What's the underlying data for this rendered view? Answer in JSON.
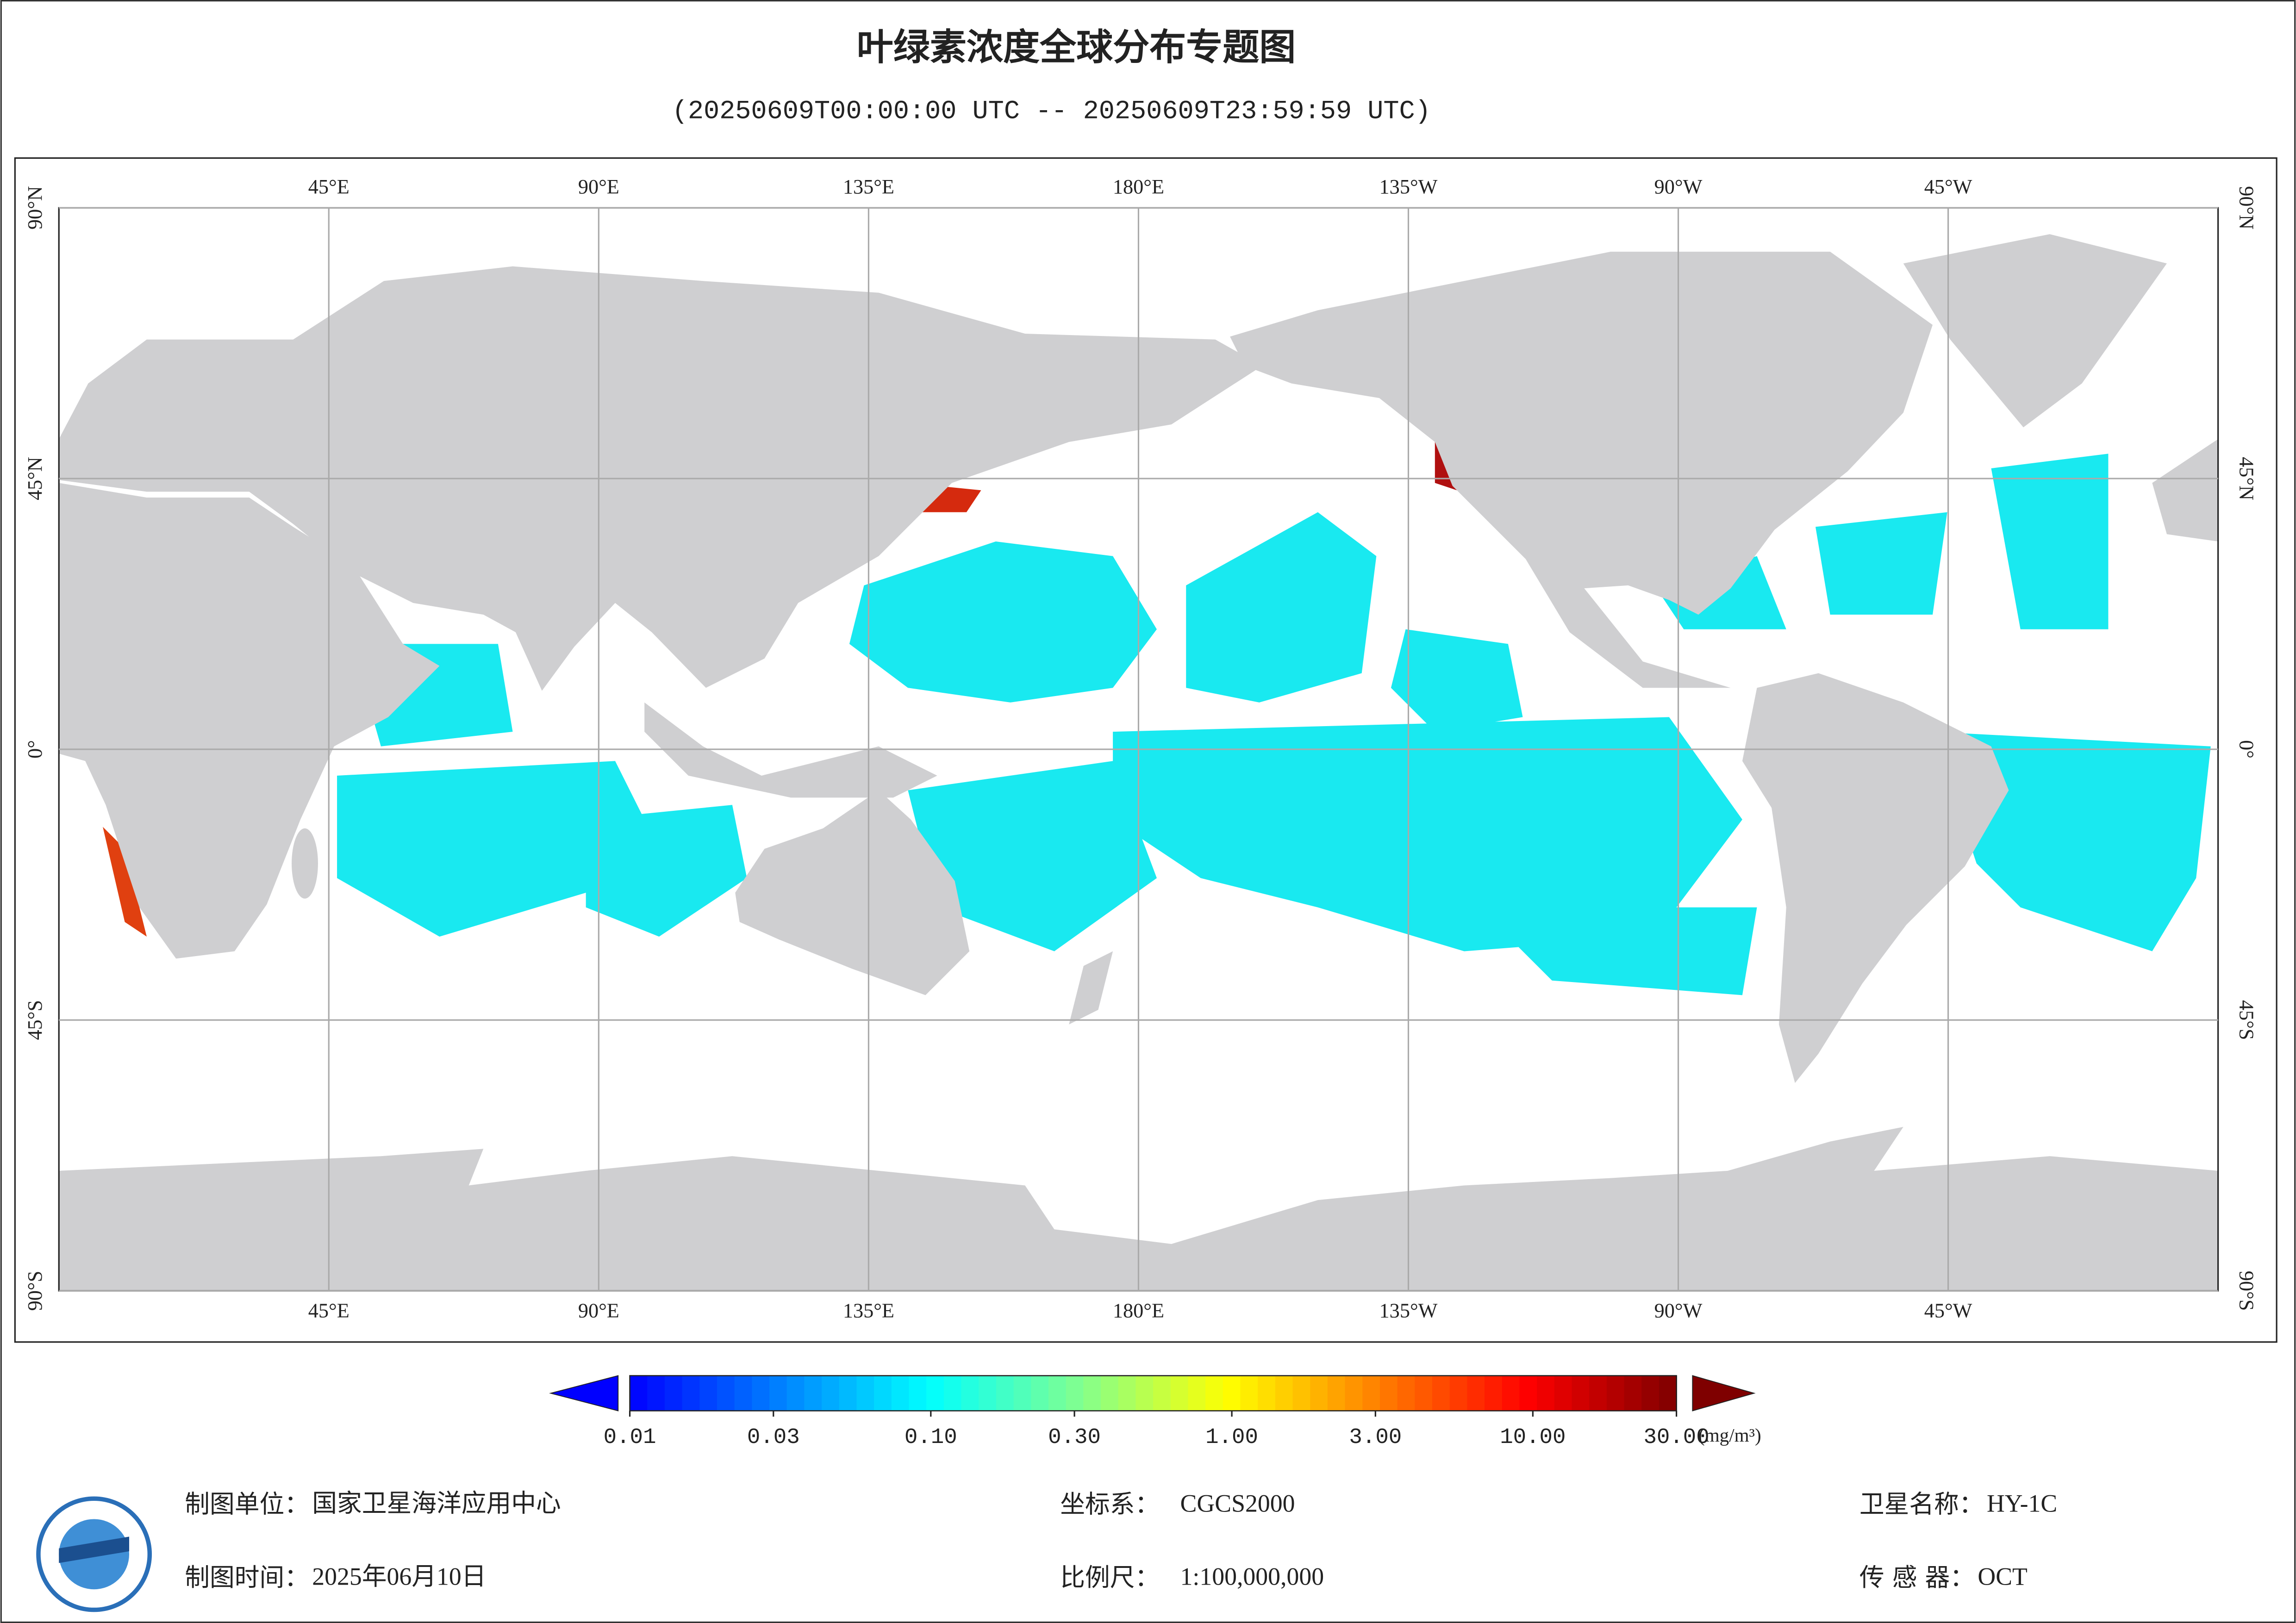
{
  "header": {
    "title": "叶绿素浓度全球分布专题图",
    "subtitle": "(20250609T00:00:00 UTC -- 20250609T23:59:59 UTC)"
  },
  "map": {
    "xlim": [
      0,
      360
    ],
    "ylim": [
      -90,
      90
    ],
    "lon_ticks": [
      {
        "value": 45,
        "label": "45°E"
      },
      {
        "value": 90,
        "label": "90°E"
      },
      {
        "value": 135,
        "label": "135°E"
      },
      {
        "value": 180,
        "label": "180°E"
      },
      {
        "value": 225,
        "label": "135°W"
      },
      {
        "value": 270,
        "label": "90°W"
      },
      {
        "value": 315,
        "label": "45°W"
      }
    ],
    "lat_ticks": [
      {
        "value": 90,
        "label": "90°N"
      },
      {
        "value": 45,
        "label": "45°N"
      },
      {
        "value": 0,
        "label": "0°"
      },
      {
        "value": -45,
        "label": "45°S"
      },
      {
        "value": -90,
        "label": "90°S"
      }
    ],
    "grid": true
  },
  "colorbar": {
    "log": true,
    "lim": [
      0.01,
      30
    ],
    "colors": [
      "#0000ff",
      "#0080ff",
      "#00ffff",
      "#80ff90",
      "#ffff00",
      "#ff8000",
      "#ff0000",
      "#7f0000"
    ],
    "ticks": [
      {
        "value": 0.01,
        "label": "0.01"
      },
      {
        "value": 0.03,
        "label": "0.03"
      },
      {
        "value": 0.1,
        "label": "0.10"
      },
      {
        "value": 0.3,
        "label": "0.30"
      },
      {
        "value": 1,
        "label": "1.00"
      },
      {
        "value": 3,
        "label": "3.00"
      },
      {
        "value": 10,
        "label": "10.00"
      },
      {
        "value": 30,
        "label": "30.00"
      }
    ],
    "unit": "(mg/m³)"
  },
  "footer": {
    "fields": [
      {
        "label": "制图单位：",
        "value": "国家卫星海洋应用中心"
      },
      {
        "label": "制图时间：",
        "value": "2025年06月10日"
      },
      {
        "label": "坐标系：",
        "value": "CGCS2000"
      },
      {
        "label": "比例尺：",
        "value": "1:100,000,000"
      },
      {
        "label": "卫星名称：",
        "value": "HY-1C"
      },
      {
        "label": "传 感 器：",
        "value": "OCT"
      }
    ]
  }
}
